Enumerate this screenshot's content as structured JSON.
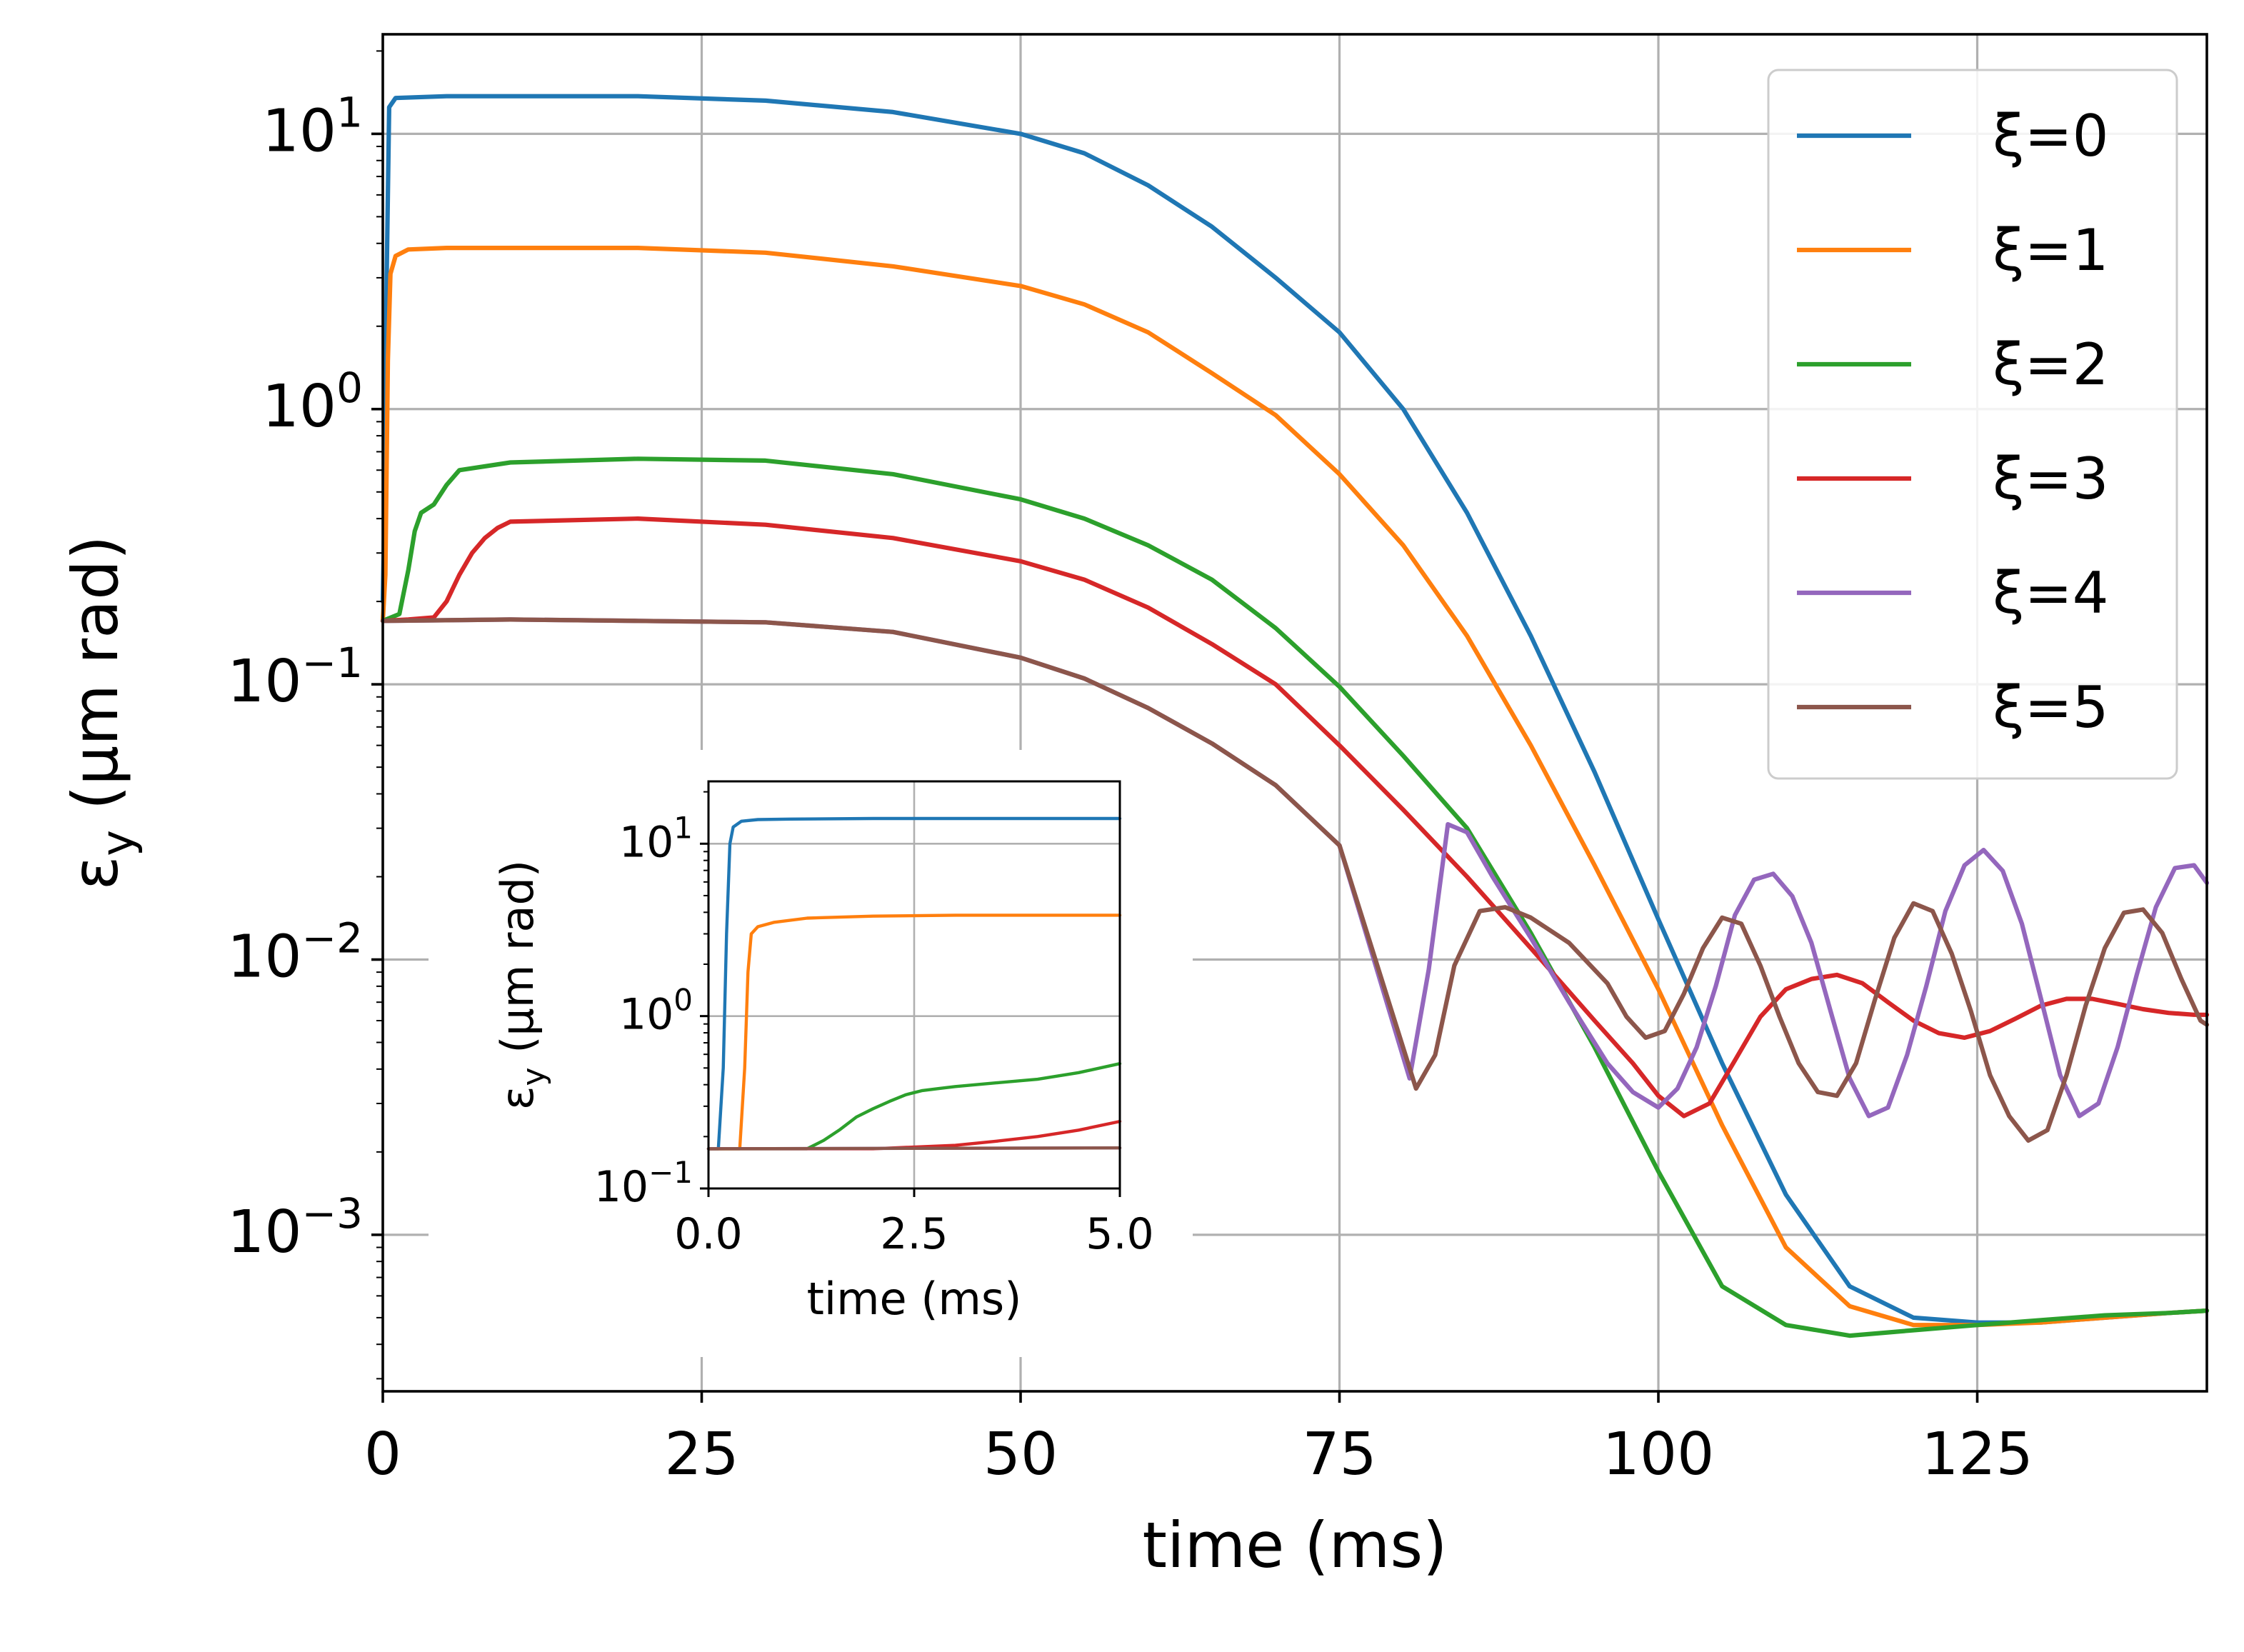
{
  "chart_data": [
    {
      "id": "main",
      "type": "line",
      "title": "",
      "xlabel": "time (ms)",
      "ylabel": "ε",
      "ylabel_sub": "y",
      "ylabel_units": " (μm rad)",
      "yscale": "log",
      "xlim": [
        0,
        143
      ],
      "ylim": [
        0.00027,
        23
      ],
      "grid": true,
      "legend": "top-right",
      "xticks": [
        {
          "value": 0,
          "label": "0"
        },
        {
          "value": 25,
          "label": "25"
        },
        {
          "value": 50,
          "label": "50"
        },
        {
          "value": 75,
          "label": "75"
        },
        {
          "value": 100,
          "label": "100"
        },
        {
          "value": 125,
          "label": "125"
        }
      ],
      "yticks": [
        {
          "value": 0.001,
          "base": "10",
          "exp": "−3"
        },
        {
          "value": 0.01,
          "base": "10",
          "exp": "−2"
        },
        {
          "value": 0.1,
          "base": "10",
          "exp": "−1"
        },
        {
          "value": 1,
          "base": "10",
          "exp": "0"
        },
        {
          "value": 10,
          "base": "10",
          "exp": "1"
        }
      ],
      "series": [
        {
          "name": "ξ=0",
          "color": "#1f77b4",
          "x": [
            0,
            0.15,
            0.3,
            0.5,
            1,
            5,
            10,
            20,
            30,
            40,
            50,
            55,
            60,
            65,
            70,
            75,
            80,
            85,
            90,
            95,
            100,
            105,
            110,
            115,
            120,
            125,
            130,
            135,
            140,
            143
          ],
          "y": [
            0.2,
            0.5,
            3,
            12.5,
            13.5,
            13.7,
            13.7,
            13.7,
            13.2,
            12,
            10,
            8.5,
            6.5,
            4.6,
            3,
            1.9,
            1.0,
            0.42,
            0.15,
            0.048,
            0.014,
            0.0042,
            0.0014,
            0.00065,
            0.0005,
            0.00048,
            0.00048,
            0.0005,
            0.00052,
            0.00053
          ]
        },
        {
          "name": "ξ=1",
          "color": "#ff7f0e",
          "x": [
            0,
            0.2,
            0.4,
            0.6,
            1,
            2,
            5,
            20,
            30,
            40,
            50,
            55,
            60,
            65,
            70,
            75,
            80,
            85,
            90,
            95,
            100,
            105,
            110,
            115,
            120,
            125,
            130,
            135,
            140,
            143
          ],
          "y": [
            0.17,
            0.25,
            1.5,
            3.1,
            3.6,
            3.8,
            3.85,
            3.85,
            3.7,
            3.3,
            2.8,
            2.4,
            1.9,
            1.35,
            0.95,
            0.58,
            0.32,
            0.15,
            0.06,
            0.022,
            0.0078,
            0.0025,
            0.0009,
            0.00055,
            0.00047,
            0.00047,
            0.00048,
            0.0005,
            0.00052,
            0.00053
          ]
        },
        {
          "name": "ξ=2",
          "color": "#2ca02c",
          "x": [
            0,
            1.3,
            2,
            2.5,
            3,
            4,
            5,
            6,
            10,
            20,
            30,
            40,
            50,
            55,
            60,
            65,
            70,
            75,
            80,
            85,
            90,
            95,
            100,
            105,
            110,
            115,
            120,
            125,
            130,
            135,
            140,
            143
          ],
          "y": [
            0.17,
            0.18,
            0.26,
            0.36,
            0.42,
            0.45,
            0.53,
            0.6,
            0.64,
            0.66,
            0.65,
            0.58,
            0.47,
            0.4,
            0.32,
            0.24,
            0.16,
            0.098,
            0.055,
            0.03,
            0.0125,
            0.0048,
            0.0017,
            0.00065,
            0.00047,
            0.00043,
            0.00045,
            0.00047,
            0.00049,
            0.00051,
            0.00052,
            0.00053
          ]
        },
        {
          "name": "ξ=3",
          "color": "#d62728",
          "x": [
            0,
            2,
            4,
            5,
            6,
            7,
            8,
            9,
            10,
            20,
            30,
            40,
            50,
            55,
            60,
            65,
            70,
            75,
            80,
            85,
            90,
            95,
            98,
            100,
            102,
            104,
            106,
            108,
            110,
            112,
            114,
            116,
            118,
            120,
            122,
            124,
            126,
            128,
            130,
            132,
            134,
            136,
            138,
            140,
            142,
            143
          ],
          "y": [
            0.17,
            0.172,
            0.175,
            0.2,
            0.25,
            0.3,
            0.34,
            0.37,
            0.39,
            0.4,
            0.38,
            0.34,
            0.28,
            0.24,
            0.19,
            0.14,
            0.1,
            0.06,
            0.035,
            0.02,
            0.011,
            0.006,
            0.0042,
            0.0032,
            0.0027,
            0.003,
            0.0043,
            0.0062,
            0.0078,
            0.0085,
            0.0088,
            0.0082,
            0.007,
            0.006,
            0.0054,
            0.0052,
            0.0055,
            0.0061,
            0.0068,
            0.0072,
            0.0072,
            0.0069,
            0.0066,
            0.0064,
            0.0063,
            0.0063
          ]
        },
        {
          "name": "ξ=4",
          "color": "#9467bd",
          "x": [
            0,
            10,
            20,
            30,
            40,
            50,
            55,
            60,
            65,
            70,
            75,
            80.5,
            82,
            83.5,
            85,
            87,
            90,
            93,
            96,
            98,
            100,
            101.5,
            103,
            104.5,
            106,
            107.5,
            109,
            110.5,
            112,
            113.5,
            115,
            116.5,
            118,
            119.5,
            121,
            122.5,
            124,
            125.5,
            127,
            128.5,
            130,
            131.5,
            133,
            134.5,
            136,
            137.5,
            139,
            140.5,
            142,
            143
          ],
          "y": [
            0.17,
            0.172,
            0.17,
            0.168,
            0.155,
            0.125,
            0.105,
            0.082,
            0.061,
            0.043,
            0.026,
            0.0037,
            0.0092,
            0.031,
            0.029,
            0.02,
            0.012,
            0.007,
            0.0042,
            0.0033,
            0.0029,
            0.0034,
            0.0048,
            0.008,
            0.0145,
            0.0195,
            0.0205,
            0.017,
            0.0115,
            0.0065,
            0.0037,
            0.0027,
            0.0029,
            0.0045,
            0.008,
            0.015,
            0.022,
            0.025,
            0.021,
            0.0135,
            0.0072,
            0.0038,
            0.0027,
            0.003,
            0.0048,
            0.0088,
            0.0155,
            0.0215,
            0.022,
            0.019
          ]
        },
        {
          "name": "ξ=5",
          "color": "#8c564b",
          "x": [
            0,
            10,
            20,
            30,
            40,
            50,
            55,
            60,
            65,
            70,
            75,
            81,
            82.5,
            84,
            86,
            88,
            90,
            93,
            96,
            97.5,
            99,
            100.5,
            102,
            103.5,
            105,
            106.5,
            108,
            109.5,
            111,
            112.5,
            114,
            115.5,
            117,
            118.5,
            120,
            121.5,
            123,
            124.5,
            126,
            127.5,
            129,
            130.5,
            132,
            133.5,
            135,
            136.5,
            138,
            139.5,
            141,
            142.5,
            143
          ],
          "y": [
            0.17,
            0.172,
            0.17,
            0.168,
            0.155,
            0.125,
            0.105,
            0.082,
            0.061,
            0.043,
            0.026,
            0.0034,
            0.0045,
            0.0095,
            0.015,
            0.0155,
            0.0142,
            0.0115,
            0.0082,
            0.0062,
            0.0052,
            0.0055,
            0.0075,
            0.011,
            0.0142,
            0.0135,
            0.0095,
            0.0062,
            0.0042,
            0.0033,
            0.0032,
            0.0042,
            0.0072,
            0.012,
            0.016,
            0.015,
            0.0105,
            0.0065,
            0.0038,
            0.0027,
            0.0022,
            0.0024,
            0.0038,
            0.0068,
            0.011,
            0.0148,
            0.0152,
            0.0125,
            0.0085,
            0.006,
            0.0058
          ]
        }
      ]
    },
    {
      "id": "inset",
      "type": "line",
      "title": "",
      "xlabel": "time (ms)",
      "ylabel": "ε",
      "ylabel_sub": "y",
      "ylabel_units": " (μm rad)",
      "yscale": "log",
      "xlim": [
        0,
        5
      ],
      "ylim": [
        0.1,
        23
      ],
      "grid": true,
      "xticks": [
        {
          "value": 0,
          "label": "0.0"
        },
        {
          "value": 2.5,
          "label": "2.5"
        },
        {
          "value": 5,
          "label": "5.0"
        }
      ],
      "yticks": [
        {
          "value": 0.1,
          "base": "10",
          "exp": "−1"
        },
        {
          "value": 1,
          "base": "10",
          "exp": "0"
        },
        {
          "value": 10,
          "base": "10",
          "exp": "1"
        }
      ],
      "series": [
        {
          "name": "ξ=0",
          "color": "#1f77b4",
          "x": [
            0,
            0.12,
            0.18,
            0.22,
            0.26,
            0.3,
            0.4,
            0.6,
            1,
            2,
            3,
            4,
            5
          ],
          "y": [
            0.17,
            0.17,
            0.5,
            3,
            10,
            12.5,
            13.5,
            13.8,
            13.9,
            14,
            14,
            14,
            14
          ]
        },
        {
          "name": "ξ=1",
          "color": "#ff7f0e",
          "x": [
            0,
            0.38,
            0.44,
            0.48,
            0.52,
            0.6,
            0.8,
            1.2,
            2,
            3,
            4,
            5
          ],
          "y": [
            0.17,
            0.17,
            0.5,
            1.8,
            3.0,
            3.3,
            3.5,
            3.7,
            3.8,
            3.85,
            3.85,
            3.85
          ]
        },
        {
          "name": "ξ=2",
          "color": "#2ca02c",
          "x": [
            0,
            1.2,
            1.4,
            1.6,
            1.8,
            2.0,
            2.2,
            2.4,
            2.6,
            2.8,
            3.0,
            3.5,
            4.0,
            4.5,
            5.0
          ],
          "y": [
            0.17,
            0.17,
            0.19,
            0.22,
            0.26,
            0.29,
            0.32,
            0.35,
            0.37,
            0.38,
            0.39,
            0.41,
            0.43,
            0.47,
            0.53
          ]
        },
        {
          "name": "ξ=3",
          "color": "#d62728",
          "x": [
            0,
            2.0,
            3.0,
            3.5,
            4.0,
            4.5,
            5.0
          ],
          "y": [
            0.17,
            0.17,
            0.178,
            0.188,
            0.2,
            0.218,
            0.245
          ]
        },
        {
          "name": "ξ=4",
          "color": "#9467bd",
          "x": [
            0,
            5
          ],
          "y": [
            0.17,
            0.172
          ]
        },
        {
          "name": "ξ=5",
          "color": "#8c564b",
          "x": [
            0,
            5
          ],
          "y": [
            0.17,
            0.172
          ]
        }
      ]
    }
  ]
}
